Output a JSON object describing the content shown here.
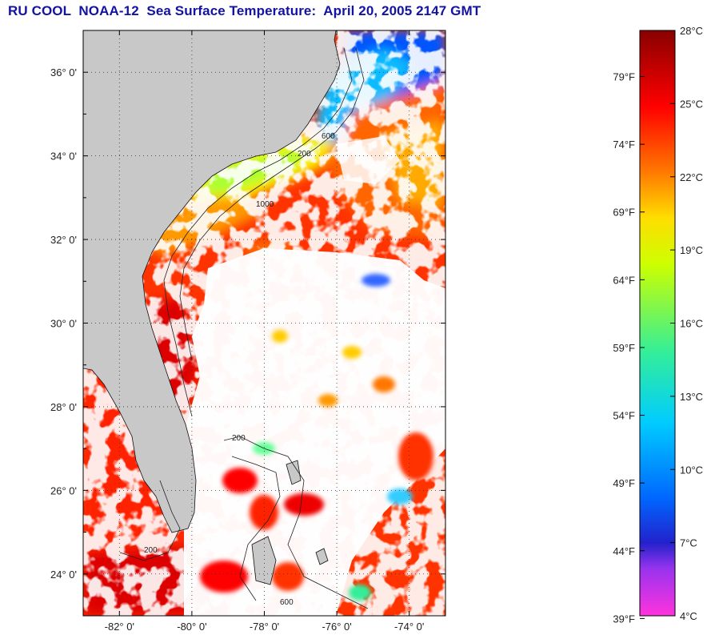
{
  "title": "RU COOL  NOAA-12  Sea Surface Temperature:  April 20, 2005 2147 GMT",
  "map": {
    "lat_range": [
      23.0,
      37.0
    ],
    "lon_range": [
      -83.0,
      -73.0
    ],
    "lat_labels": [
      "36° 0'",
      "34° 0'",
      "32° 0'",
      "30° 0'",
      "28° 0'",
      "26° 0'",
      "24° 0'"
    ],
    "lat_values": [
      36,
      34,
      32,
      30,
      28,
      26,
      24
    ],
    "lon_labels": [
      "-82° 0'",
      "-80° 0'",
      "-78° 0'",
      "-76° 0'",
      "-74° 0'"
    ],
    "lon_values": [
      -82,
      -80,
      -78,
      -76,
      -74
    ],
    "grid": "dotted",
    "depth_contour_labels": [
      "200",
      "600",
      "1000",
      "200",
      "600",
      "200"
    ],
    "land_color": "#c8c8c8",
    "cloud_color": "#ffffff"
  },
  "colorbar": {
    "celsius_range": [
      4,
      28
    ],
    "celsius_labels": [
      "28°C",
      "25°C",
      "22°C",
      "19°C",
      "16°C",
      "13°C",
      "10°C",
      "7°C",
      "4°C"
    ],
    "celsius_values": [
      28,
      25,
      22,
      19,
      16,
      13,
      10,
      7,
      4
    ],
    "fahrenheit_labels": [
      "79°F",
      "74°F",
      "69°F",
      "64°F",
      "59°F",
      "54°F",
      "49°F",
      "44°F",
      "39°F"
    ],
    "fahrenheit_values": [
      79,
      74,
      69,
      64,
      59,
      54,
      49,
      44,
      39
    ],
    "colors": [
      "#ff33dd",
      "#9933ee",
      "#2222cc",
      "#0066ff",
      "#00ccff",
      "#33ee99",
      "#ccff00",
      "#ffdd00",
      "#ff7700",
      "#ff0000",
      "#880000"
    ]
  }
}
